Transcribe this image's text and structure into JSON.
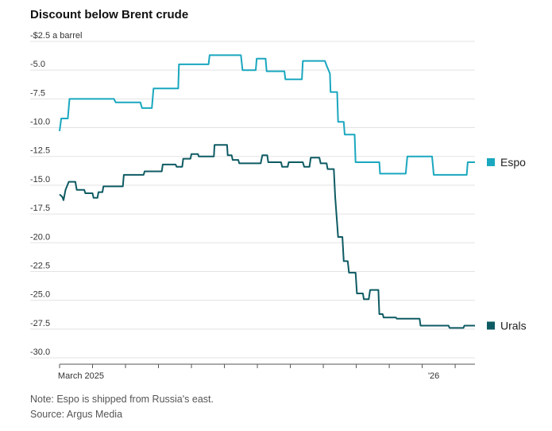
{
  "chart_data": {
    "type": "line",
    "title": "Discount below Brent crude",
    "unit_label": "-$2.5 a barrel",
    "ylim": [
      -30,
      -2.5
    ],
    "y_ticks": [
      -2.5,
      -5,
      -7.5,
      -10,
      -12.5,
      -15,
      -17.5,
      -20,
      -22.5,
      -25,
      -27.5,
      -30
    ],
    "y_tick_labels": [
      "-$2.5 a barrel",
      "-5.0",
      "-7.5",
      "-10.0",
      "-12.5",
      "-15.0",
      "-17.5",
      "-20.0",
      "-22.5",
      "-25.0",
      "-27.5",
      "-30.0"
    ],
    "xlim": [
      0,
      12.6
    ],
    "x_tick_positions": [
      0,
      1,
      2,
      3,
      4,
      5,
      6,
      7,
      8,
      9,
      10,
      11,
      12
    ],
    "x_tick_labels": [
      {
        "x": 0.65,
        "label": "March 2025"
      },
      {
        "x": 11.35,
        "label": "'26"
      }
    ],
    "series": [
      {
        "name": "Espo",
        "color": "#1aa7bf",
        "points": [
          [
            0.0,
            -10.3
          ],
          [
            0.05,
            -9.2
          ],
          [
            0.25,
            -9.2
          ],
          [
            0.3,
            -7.5
          ],
          [
            1.65,
            -7.5
          ],
          [
            1.7,
            -7.8
          ],
          [
            2.45,
            -7.8
          ],
          [
            2.5,
            -8.3
          ],
          [
            2.8,
            -8.3
          ],
          [
            2.85,
            -6.6
          ],
          [
            3.6,
            -6.6
          ],
          [
            3.62,
            -4.5
          ],
          [
            4.52,
            -4.5
          ],
          [
            4.55,
            -3.7
          ],
          [
            5.5,
            -3.7
          ],
          [
            5.55,
            -5.0
          ],
          [
            5.95,
            -5.0
          ],
          [
            5.98,
            -4.0
          ],
          [
            6.25,
            -4.0
          ],
          [
            6.28,
            -5.1
          ],
          [
            6.82,
            -5.1
          ],
          [
            6.85,
            -5.8
          ],
          [
            7.35,
            -5.8
          ],
          [
            7.38,
            -4.2
          ],
          [
            8.05,
            -4.2
          ],
          [
            8.1,
            -4.6
          ],
          [
            8.2,
            -5.3
          ],
          [
            8.22,
            -6.9
          ],
          [
            8.42,
            -6.9
          ],
          [
            8.45,
            -9.5
          ],
          [
            8.62,
            -9.5
          ],
          [
            8.65,
            -10.6
          ],
          [
            8.95,
            -10.6
          ],
          [
            8.98,
            -13.0
          ],
          [
            9.7,
            -13.0
          ],
          [
            9.72,
            -14.0
          ],
          [
            10.5,
            -14.0
          ],
          [
            10.55,
            -12.5
          ],
          [
            11.3,
            -12.5
          ],
          [
            11.35,
            -14.1
          ],
          [
            12.35,
            -14.1
          ],
          [
            12.38,
            -13.0
          ],
          [
            12.6,
            -13.0
          ]
        ]
      },
      {
        "name": "Urals",
        "color": "#0e5b63",
        "points": [
          [
            0.0,
            -15.8
          ],
          [
            0.08,
            -16.0
          ],
          [
            0.12,
            -16.3
          ],
          [
            0.18,
            -15.4
          ],
          [
            0.28,
            -14.7
          ],
          [
            0.48,
            -14.7
          ],
          [
            0.52,
            -15.4
          ],
          [
            0.75,
            -15.4
          ],
          [
            0.78,
            -15.7
          ],
          [
            1.0,
            -15.7
          ],
          [
            1.03,
            -16.1
          ],
          [
            1.15,
            -16.1
          ],
          [
            1.18,
            -15.6
          ],
          [
            1.3,
            -15.6
          ],
          [
            1.33,
            -15.1
          ],
          [
            1.92,
            -15.1
          ],
          [
            1.95,
            -14.1
          ],
          [
            2.55,
            -14.1
          ],
          [
            2.58,
            -13.8
          ],
          [
            3.1,
            -13.8
          ],
          [
            3.13,
            -13.2
          ],
          [
            3.52,
            -13.2
          ],
          [
            3.55,
            -13.4
          ],
          [
            3.72,
            -13.4
          ],
          [
            3.75,
            -12.7
          ],
          [
            3.97,
            -12.7
          ],
          [
            4.0,
            -12.3
          ],
          [
            4.2,
            -12.3
          ],
          [
            4.22,
            -12.5
          ],
          [
            4.68,
            -12.5
          ],
          [
            4.7,
            -11.5
          ],
          [
            5.08,
            -11.5
          ],
          [
            5.1,
            -12.4
          ],
          [
            5.22,
            -12.4
          ],
          [
            5.25,
            -12.8
          ],
          [
            5.42,
            -12.8
          ],
          [
            5.45,
            -13.1
          ],
          [
            6.1,
            -13.1
          ],
          [
            6.15,
            -12.4
          ],
          [
            6.3,
            -12.4
          ],
          [
            6.33,
            -13.0
          ],
          [
            6.72,
            -13.0
          ],
          [
            6.75,
            -13.4
          ],
          [
            6.92,
            -13.4
          ],
          [
            6.95,
            -13.0
          ],
          [
            7.38,
            -13.0
          ],
          [
            7.42,
            -13.4
          ],
          [
            7.58,
            -13.4
          ],
          [
            7.62,
            -12.6
          ],
          [
            7.88,
            -12.6
          ],
          [
            7.92,
            -13.1
          ],
          [
            8.1,
            -13.1
          ],
          [
            8.13,
            -13.6
          ],
          [
            8.32,
            -13.6
          ],
          [
            8.36,
            -16.0
          ],
          [
            8.45,
            -19.5
          ],
          [
            8.58,
            -19.5
          ],
          [
            8.62,
            -21.6
          ],
          [
            8.74,
            -21.6
          ],
          [
            8.78,
            -22.6
          ],
          [
            8.98,
            -22.6
          ],
          [
            9.02,
            -24.4
          ],
          [
            9.2,
            -24.4
          ],
          [
            9.23,
            -24.9
          ],
          [
            9.38,
            -24.9
          ],
          [
            9.42,
            -24.1
          ],
          [
            9.67,
            -24.1
          ],
          [
            9.7,
            -26.2
          ],
          [
            9.8,
            -26.2
          ],
          [
            9.83,
            -26.5
          ],
          [
            10.2,
            -26.5
          ],
          [
            10.23,
            -26.6
          ],
          [
            10.92,
            -26.6
          ],
          [
            10.95,
            -27.2
          ],
          [
            11.8,
            -27.2
          ],
          [
            11.83,
            -27.4
          ],
          [
            12.25,
            -27.4
          ],
          [
            12.28,
            -27.2
          ],
          [
            12.6,
            -27.2
          ]
        ]
      }
    ],
    "legend": [
      {
        "name": "Espo",
        "color": "#1aa7bf"
      },
      {
        "name": "Urals",
        "color": "#0e5b63"
      }
    ]
  },
  "footer": {
    "note": "Note: Espo is shipped from Russia's east.",
    "source": "Source: Argus Media"
  }
}
